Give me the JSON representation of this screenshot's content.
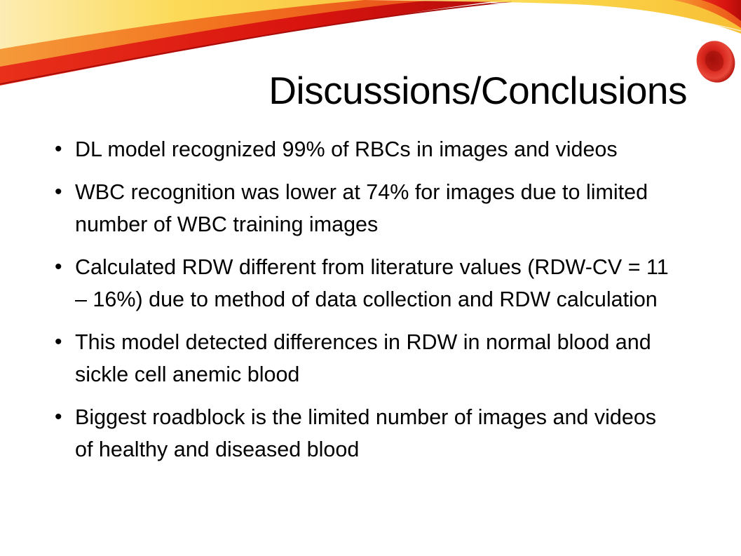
{
  "slide": {
    "title": "Discussions/Conclusions",
    "bullets": [
      {
        "text": "DL model recognized 99% of RBCs in images and videos"
      },
      {
        "text": "WBC recognition was lower at 74% for images due to limited number of WBC training images"
      },
      {
        "text": "Calculated RDW different from literature values (RDW-CV = 11 – 16%) due to method of data collection and RDW calculation"
      },
      {
        "text": "This model detected differences in RDW in normal blood and sickle cell anemic blood"
      },
      {
        "text": "Biggest roadblock is the limited number of images and videos of healthy and diseased blood"
      }
    ]
  },
  "colors": {
    "background": "#ffffff",
    "text": "#000000",
    "swoosh_red": "#d9140f",
    "swoosh_orange": "#f2731f",
    "swoosh_yellow": "#fbd43a",
    "blood_cell": "#c8201a"
  }
}
